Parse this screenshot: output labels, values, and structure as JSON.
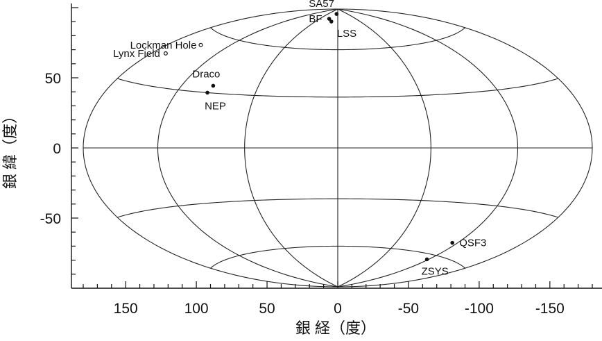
{
  "chart_data": {
    "type": "scatter",
    "projection": "aitoff-equal-area (all-sky, galactic)",
    "title": "",
    "xlabel": "銀 経（度）",
    "ylabel": "銀 緯（度）",
    "xlim": [
      180,
      -180
    ],
    "ylim": [
      -90,
      90
    ],
    "grid": true,
    "meridians": [
      -180,
      -120,
      -60,
      0,
      60,
      120,
      180
    ],
    "parallels": [
      -60,
      -30,
      0,
      30,
      60
    ],
    "x_ticks": [
      150,
      100,
      50,
      0,
      -50,
      -100,
      -150
    ],
    "x_tick_labels": [
      "150",
      "100",
      "50",
      "0",
      "-50",
      "-100",
      "-150"
    ],
    "y_ticks": [
      50,
      0,
      -50
    ],
    "y_tick_labels": [
      "50",
      "0",
      "-50"
    ],
    "fields": [
      {
        "label": "SA57",
        "l": 8,
        "b": 86,
        "marker": "filled"
      },
      {
        "label": "BF",
        "l": 30,
        "b": 82,
        "marker": "filled"
      },
      {
        "label": "LSS",
        "l": 18,
        "b": 80,
        "marker": "filled"
      },
      {
        "label": "Lockman Hole",
        "l": 149,
        "b": 53,
        "marker": "open"
      },
      {
        "label": "Lynx Field",
        "l": 167,
        "b": 45,
        "marker": "open"
      },
      {
        "label": "Draco",
        "l": 95,
        "b": 34,
        "marker": "filled"
      },
      {
        "label": "NEP",
        "l": 96,
        "b": 30,
        "marker": "filled"
      },
      {
        "label": "QSF3",
        "l": -115,
        "b": -52,
        "marker": "filled"
      },
      {
        "label": "ZSYS",
        "l": -118,
        "b": -63,
        "marker": "filled"
      }
    ]
  }
}
